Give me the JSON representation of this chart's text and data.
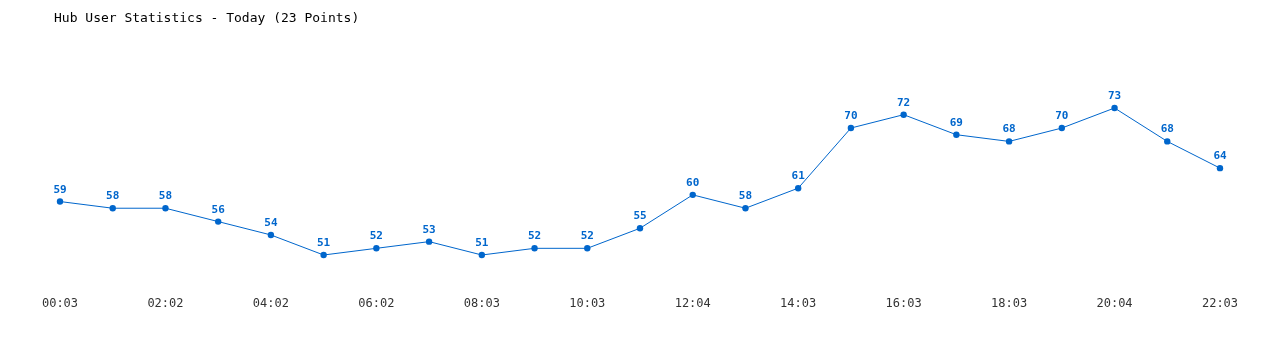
{
  "chart_data": {
    "type": "line",
    "title": "Hub User Statistics - Today (23 Points)",
    "categories": [
      "00:03",
      null,
      "02:02",
      null,
      "04:02",
      null,
      "06:02",
      null,
      "08:03",
      null,
      "10:03",
      null,
      "12:04",
      null,
      "14:03",
      null,
      "16:03",
      null,
      "18:03",
      null,
      "20:04",
      null,
      "22:03"
    ],
    "series": [
      {
        "color": "#0066cc",
        "values": [
          59,
          58,
          58,
          56,
          54,
          51,
          52,
          53,
          51,
          52,
          52,
          55,
          60,
          58,
          61,
          70,
          72,
          69,
          68,
          70,
          73,
          68,
          64
        ]
      }
    ],
    "data_labels": true,
    "marker": "circle",
    "line_style": "solid"
  }
}
